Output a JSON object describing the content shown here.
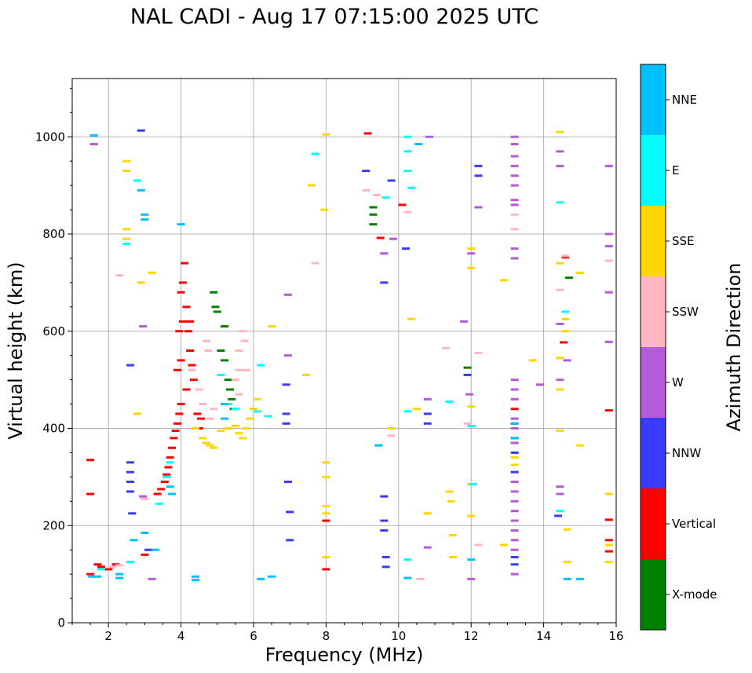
{
  "chart_data": {
    "type": "scatter",
    "title": "NAL CADI - Aug 17 07:15:00 2025 UTC",
    "xlabel": "Frequency (MHz)",
    "ylabel": "Virtual height (km)",
    "xlim": [
      1,
      16
    ],
    "ylim": [
      0,
      1120
    ],
    "xticks": [
      2,
      4,
      6,
      8,
      10,
      12,
      14,
      16
    ],
    "yticks": [
      0,
      200,
      400,
      600,
      800,
      1000
    ],
    "grid": true,
    "colorbar": {
      "label": "Azimuth Direction",
      "entries": [
        {
          "name": "X-mode",
          "color": "#008000"
        },
        {
          "name": "Vertical",
          "color": "#ff0000"
        },
        {
          "name": "NNW",
          "color": "#3a3aff"
        },
        {
          "name": "W",
          "color": "#b55ad8"
        },
        {
          "name": "SSW",
          "color": "#ffb6c1"
        },
        {
          "name": "SSE",
          "color": "#ffd700"
        },
        {
          "name": "E",
          "color": "#00ffff"
        },
        {
          "name": "NNE",
          "color": "#00bfff"
        }
      ]
    },
    "series": [
      {
        "name": "Vertical",
        "points": [
          [
            3.35,
            265
          ],
          [
            3.45,
            275
          ],
          [
            3.55,
            290
          ],
          [
            3.6,
            305
          ],
          [
            3.65,
            320
          ],
          [
            3.7,
            340
          ],
          [
            3.75,
            360
          ],
          [
            3.8,
            380
          ],
          [
            3.85,
            395
          ],
          [
            3.9,
            410
          ],
          [
            3.95,
            430
          ],
          [
            4.0,
            450
          ],
          [
            3.9,
            520
          ],
          [
            4.0,
            540
          ],
          [
            3.95,
            600
          ],
          [
            4.05,
            620
          ],
          [
            4.0,
            680
          ],
          [
            4.05,
            700
          ],
          [
            4.1,
            740
          ],
          [
            4.2,
            600
          ],
          [
            4.25,
            560
          ],
          [
            4.3,
            530
          ],
          [
            4.15,
            480
          ],
          [
            4.35,
            500
          ],
          [
            4.45,
            430
          ],
          [
            4.55,
            420
          ],
          [
            4.5,
            400
          ],
          [
            4.15,
            650
          ],
          [
            4.25,
            620
          ],
          [
            1.5,
            335
          ],
          [
            1.5,
            265
          ],
          [
            1.5,
            100
          ],
          [
            1.7,
            120
          ],
          [
            1.8,
            115
          ],
          [
            2.0,
            110
          ],
          [
            2.2,
            120
          ],
          [
            3.0,
            140
          ],
          [
            8.0,
            110
          ],
          [
            8.0,
            210
          ],
          [
            9.15,
            1007
          ],
          [
            9.5,
            792
          ],
          [
            10.1,
            860
          ],
          [
            14.55,
            577
          ],
          [
            15.8,
            437
          ],
          [
            15.8,
            212
          ],
          [
            15.8,
            170
          ],
          [
            15.8,
            147
          ],
          [
            13.2,
            440
          ],
          [
            14.6,
            752
          ]
        ]
      },
      {
        "name": "X-mode",
        "points": [
          [
            4.9,
            680
          ],
          [
            4.95,
            650
          ],
          [
            5.0,
            640
          ],
          [
            5.1,
            560
          ],
          [
            5.2,
            540
          ],
          [
            5.3,
            500
          ],
          [
            5.35,
            480
          ],
          [
            5.4,
            460
          ],
          [
            5.45,
            440
          ],
          [
            5.2,
            610
          ],
          [
            9.3,
            820
          ],
          [
            9.3,
            840
          ],
          [
            9.3,
            855
          ],
          [
            11.9,
            525
          ],
          [
            14.7,
            710
          ]
        ]
      },
      {
        "name": "NNW",
        "points": [
          [
            2.9,
            1013
          ],
          [
            2.6,
            530
          ],
          [
            2.6,
            330
          ],
          [
            2.6,
            310
          ],
          [
            2.6,
            290
          ],
          [
            2.6,
            270
          ],
          [
            2.65,
            225
          ],
          [
            3.1,
            150
          ],
          [
            6.9,
            490
          ],
          [
            6.9,
            430
          ],
          [
            6.9,
            410
          ],
          [
            6.95,
            290
          ],
          [
            7.0,
            228
          ],
          [
            7.0,
            170
          ],
          [
            9.1,
            930
          ],
          [
            9.8,
            910
          ],
          [
            9.6,
            700
          ],
          [
            9.6,
            260
          ],
          [
            9.6,
            210
          ],
          [
            9.6,
            190
          ],
          [
            9.65,
            135
          ],
          [
            9.65,
            115
          ],
          [
            10.2,
            770
          ],
          [
            10.8,
            430
          ],
          [
            10.8,
            410
          ],
          [
            11.9,
            510
          ],
          [
            12.2,
            940
          ],
          [
            12.2,
            920
          ],
          [
            13.2,
            410
          ],
          [
            13.2,
            380
          ],
          [
            13.2,
            350
          ],
          [
            13.2,
            310
          ],
          [
            13.2,
            135
          ],
          [
            13.2,
            120
          ],
          [
            14.4,
            220
          ]
        ]
      },
      {
        "name": "W",
        "points": [
          [
            1.6,
            985
          ],
          [
            2.95,
            610
          ],
          [
            2.95,
            260
          ],
          [
            3.2,
            90
          ],
          [
            6.95,
            675
          ],
          [
            6.95,
            550
          ],
          [
            9.6,
            760
          ],
          [
            9.85,
            790
          ],
          [
            10.85,
            1000
          ],
          [
            10.8,
            460
          ],
          [
            10.8,
            155
          ],
          [
            11.8,
            620
          ],
          [
            11.95,
            470
          ],
          [
            12.0,
            90
          ],
          [
            12.2,
            855
          ],
          [
            13.2,
            1000
          ],
          [
            13.2,
            985
          ],
          [
            13.2,
            960
          ],
          [
            13.2,
            940
          ],
          [
            13.2,
            920
          ],
          [
            13.2,
            900
          ],
          [
            13.2,
            870
          ],
          [
            13.2,
            860
          ],
          [
            13.2,
            770
          ],
          [
            13.2,
            750
          ],
          [
            13.2,
            500
          ],
          [
            13.2,
            480
          ],
          [
            13.2,
            460
          ],
          [
            13.2,
            420
          ],
          [
            13.2,
            400
          ],
          [
            13.2,
            370
          ],
          [
            13.2,
            290
          ],
          [
            13.2,
            270
          ],
          [
            13.2,
            250
          ],
          [
            13.2,
            230
          ],
          [
            13.2,
            210
          ],
          [
            13.2,
            190
          ],
          [
            13.2,
            170
          ],
          [
            13.2,
            150
          ],
          [
            13.2,
            100
          ],
          [
            13.9,
            490
          ],
          [
            14.45,
            970
          ],
          [
            14.45,
            940
          ],
          [
            14.45,
            615
          ],
          [
            14.45,
            500
          ],
          [
            14.45,
            280
          ],
          [
            14.45,
            265
          ],
          [
            14.65,
            540
          ],
          [
            15.8,
            940
          ],
          [
            15.8,
            800
          ],
          [
            15.8,
            775
          ],
          [
            15.8,
            680
          ],
          [
            15.8,
            578
          ],
          [
            12.0,
            760
          ]
        ]
      },
      {
        "name": "SSW",
        "points": [
          [
            2.3,
            715
          ],
          [
            3.0,
            255
          ],
          [
            4.3,
            520
          ],
          [
            4.5,
            480
          ],
          [
            4.6,
            450
          ],
          [
            4.8,
            420
          ],
          [
            4.9,
            440
          ],
          [
            4.7,
            580
          ],
          [
            4.75,
            560
          ],
          [
            5.5,
            500
          ],
          [
            5.6,
            560
          ],
          [
            5.6,
            520
          ],
          [
            5.7,
            600
          ],
          [
            5.75,
            580
          ],
          [
            5.8,
            520
          ],
          [
            5.6,
            470
          ],
          [
            7.7,
            740
          ],
          [
            9.1,
            890
          ],
          [
            9.4,
            880
          ],
          [
            9.8,
            385
          ],
          [
            10.25,
            845
          ],
          [
            11.3,
            565
          ],
          [
            11.9,
            410
          ],
          [
            12.2,
            555
          ],
          [
            12.2,
            160
          ],
          [
            13.2,
            840
          ],
          [
            13.2,
            810
          ],
          [
            14.45,
            685
          ],
          [
            14.6,
            755
          ],
          [
            15.8,
            745
          ],
          [
            2.1,
            115
          ],
          [
            2.3,
            118
          ],
          [
            10.6,
            90
          ]
        ]
      },
      {
        "name": "SSE",
        "points": [
          [
            2.5,
            950
          ],
          [
            2.5,
            930
          ],
          [
            2.5,
            810
          ],
          [
            2.5,
            790
          ],
          [
            2.8,
            430
          ],
          [
            2.9,
            700
          ],
          [
            3.2,
            720
          ],
          [
            4.4,
            400
          ],
          [
            4.6,
            380
          ],
          [
            4.7,
            370
          ],
          [
            4.8,
            365
          ],
          [
            4.9,
            360
          ],
          [
            5.1,
            395
          ],
          [
            5.3,
            400
          ],
          [
            5.5,
            405
          ],
          [
            5.6,
            390
          ],
          [
            5.7,
            380
          ],
          [
            5.8,
            400
          ],
          [
            5.9,
            420
          ],
          [
            6.0,
            440
          ],
          [
            6.1,
            460
          ],
          [
            6.5,
            610
          ],
          [
            7.45,
            510
          ],
          [
            7.6,
            900
          ],
          [
            7.95,
            850
          ],
          [
            8.0,
            1005
          ],
          [
            8.0,
            330
          ],
          [
            8.0,
            300
          ],
          [
            8.0,
            240
          ],
          [
            8.0,
            225
          ],
          [
            8.0,
            135
          ],
          [
            9.8,
            400
          ],
          [
            10.35,
            625
          ],
          [
            10.5,
            440
          ],
          [
            10.8,
            225
          ],
          [
            11.4,
            270
          ],
          [
            11.45,
            250
          ],
          [
            11.5,
            135
          ],
          [
            11.5,
            180
          ],
          [
            12.0,
            770
          ],
          [
            12.0,
            730
          ],
          [
            12.0,
            445
          ],
          [
            12.0,
            285
          ],
          [
            12.0,
            220
          ],
          [
            12.9,
            705
          ],
          [
            12.9,
            160
          ],
          [
            13.2,
            340
          ],
          [
            13.2,
            325
          ],
          [
            14.45,
            1010
          ],
          [
            14.45,
            740
          ],
          [
            14.45,
            545
          ],
          [
            14.45,
            480
          ],
          [
            14.45,
            395
          ],
          [
            14.6,
            625
          ],
          [
            14.6,
            600
          ],
          [
            14.65,
            125
          ],
          [
            14.65,
            192
          ],
          [
            15.0,
            720
          ],
          [
            15.0,
            365
          ],
          [
            15.8,
            265
          ],
          [
            15.8,
            160
          ],
          [
            15.8,
            125
          ],
          [
            13.7,
            540
          ]
        ]
      },
      {
        "name": "E",
        "points": [
          [
            2.5,
            780
          ],
          [
            2.8,
            910
          ],
          [
            3.4,
            245
          ],
          [
            3.6,
            300
          ],
          [
            3.7,
            330
          ],
          [
            5.1,
            510
          ],
          [
            5.3,
            450
          ],
          [
            5.5,
            440
          ],
          [
            6.1,
            435
          ],
          [
            6.2,
            530
          ],
          [
            6.4,
            425
          ],
          [
            7.7,
            965
          ],
          [
            9.65,
            875
          ],
          [
            10.25,
            1000
          ],
          [
            10.25,
            970
          ],
          [
            10.25,
            930
          ],
          [
            10.35,
            895
          ],
          [
            10.25,
            435
          ],
          [
            10.25,
            130
          ],
          [
            11.4,
            455
          ],
          [
            12.0,
            405
          ],
          [
            12.05,
            285
          ],
          [
            14.45,
            865
          ],
          [
            14.6,
            640
          ],
          [
            14.45,
            230
          ],
          [
            1.8,
            110
          ],
          [
            2.6,
            125
          ]
        ]
      },
      {
        "name": "NNE",
        "points": [
          [
            1.6,
            1003
          ],
          [
            1.55,
            95
          ],
          [
            1.7,
            95
          ],
          [
            2.3,
            100
          ],
          [
            2.3,
            92
          ],
          [
            2.7,
            170
          ],
          [
            2.9,
            890
          ],
          [
            3.0,
            840
          ],
          [
            3.0,
            830
          ],
          [
            3.0,
            185
          ],
          [
            3.3,
            150
          ],
          [
            3.7,
            280
          ],
          [
            3.75,
            265
          ],
          [
            4.0,
            820
          ],
          [
            4.4,
            95
          ],
          [
            4.4,
            88
          ],
          [
            5.2,
            420
          ],
          [
            5.2,
            450
          ],
          [
            6.2,
            90
          ],
          [
            6.5,
            95
          ],
          [
            9.45,
            365
          ],
          [
            10.25,
            92
          ],
          [
            10.55,
            985
          ],
          [
            12.0,
            130
          ],
          [
            13.2,
            410
          ],
          [
            13.2,
            380
          ],
          [
            14.65,
            90
          ],
          [
            15.0,
            90
          ]
        ]
      }
    ]
  }
}
